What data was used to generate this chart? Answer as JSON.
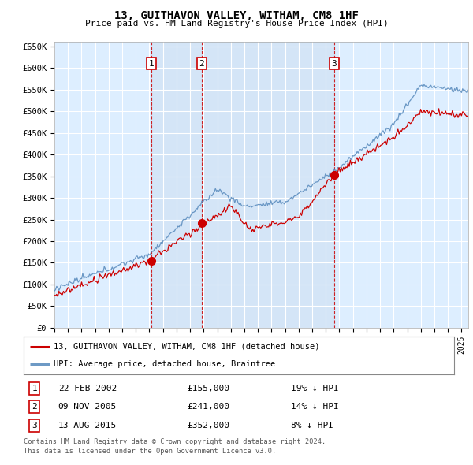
{
  "title": "13, GUITHAVON VALLEY, WITHAM, CM8 1HF",
  "subtitle": "Price paid vs. HM Land Registry's House Price Index (HPI)",
  "ylim": [
    0,
    660000
  ],
  "yticks": [
    0,
    50000,
    100000,
    150000,
    200000,
    250000,
    300000,
    350000,
    400000,
    450000,
    500000,
    550000,
    600000,
    650000
  ],
  "ytick_labels": [
    "£0",
    "£50K",
    "£100K",
    "£150K",
    "£200K",
    "£250K",
    "£300K",
    "£350K",
    "£400K",
    "£450K",
    "£500K",
    "£550K",
    "£600K",
    "£650K"
  ],
  "xlim_start": 1995.0,
  "xlim_end": 2025.5,
  "transactions": [
    {
      "num": 1,
      "date": "22-FEB-2002",
      "price": 155000,
      "pct": "19%",
      "direction": "↓",
      "x": 2002.13
    },
    {
      "num": 2,
      "date": "09-NOV-2005",
      "price": 241000,
      "pct": "14%",
      "direction": "↓",
      "x": 2005.86
    },
    {
      "num": 3,
      "date": "13-AUG-2015",
      "price": 352000,
      "pct": "8%",
      "direction": "↓",
      "x": 2015.62
    }
  ],
  "legend_line1": "13, GUITHAVON VALLEY, WITHAM, CM8 1HF (detached house)",
  "legend_line2": "HPI: Average price, detached house, Braintree",
  "footer1": "Contains HM Land Registry data © Crown copyright and database right 2024.",
  "footer2": "This data is licensed under the Open Government Licence v3.0.",
  "red_color": "#cc0000",
  "blue_color": "#5588bb",
  "shade_color": "#ccddf0",
  "plot_bg": "#ddeeff",
  "grid_color": "#ffffff"
}
